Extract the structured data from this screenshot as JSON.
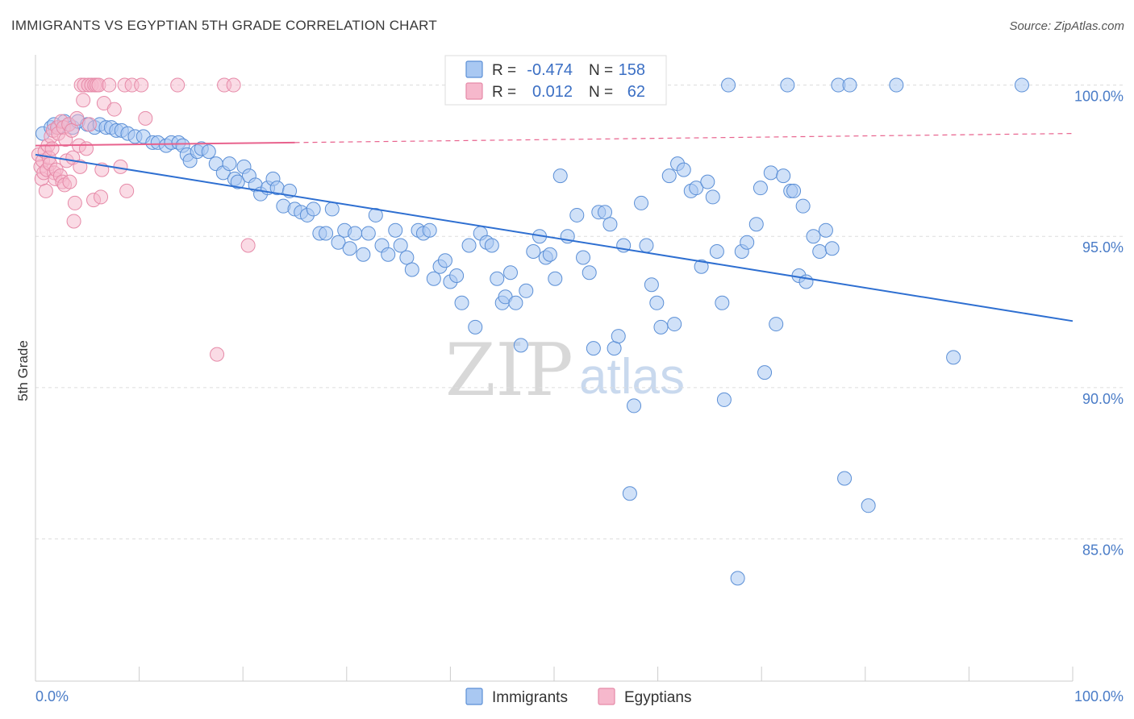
{
  "title": "IMMIGRANTS VS EGYPTIAN 5TH GRADE CORRELATION CHART",
  "source": "Source: ZipAtlas.com",
  "watermark": {
    "zip": "ZIP",
    "atlas": "atlas"
  },
  "colors": {
    "immigrants_fill": "#a9c8f2",
    "immigrants_stroke": "#5b8fd6",
    "immigrants_line": "#2e6fd1",
    "egyptians_fill": "#f6b8cc",
    "egyptians_stroke": "#e68aa8",
    "egyptians_line": "#e8628d",
    "tick_label": "#4a7cc7",
    "grid": "#dddddd"
  },
  "legend": {
    "rows": [
      {
        "r_label": "R =",
        "r_value": "-0.474",
        "n_label": "N =",
        "n_value": "158"
      },
      {
        "r_label": "R =",
        "r_value": "0.012",
        "n_label": "N =",
        "n_value": "62"
      }
    ]
  },
  "bottom_legend": {
    "immigrants": "Immigrants",
    "egyptians": "Egyptians"
  },
  "chart_data": {
    "type": "scatter",
    "title": "IMMIGRANTS VS EGYPTIAN 5TH GRADE CORRELATION CHART",
    "xlabel": "",
    "ylabel": "5th Grade",
    "xlim": [
      0,
      100
    ],
    "ylim": [
      80.3,
      101.0
    ],
    "x_tick_labels": [
      "0.0%",
      "100.0%"
    ],
    "y_ticks": [
      85,
      90,
      95,
      100
    ],
    "y_tick_labels": [
      "85.0%",
      "90.0%",
      "95.0%",
      "100.0%"
    ],
    "grid": true,
    "legend_position": "top-center",
    "series": [
      {
        "name": "Immigrants",
        "r": -0.474,
        "n": 158,
        "trend": {
          "x": [
            0,
            100
          ],
          "y": [
            97.7,
            92.2
          ],
          "style": "solid"
        },
        "points": [
          [
            0.7,
            98.4
          ],
          [
            1.5,
            98.6
          ],
          [
            1.8,
            98.7
          ],
          [
            2.2,
            98.6
          ],
          [
            2.8,
            98.8
          ],
          [
            3.2,
            98.7
          ],
          [
            3.6,
            98.6
          ],
          [
            4.1,
            98.8
          ],
          [
            5.0,
            98.7
          ],
          [
            5.7,
            98.6
          ],
          [
            6.2,
            98.7
          ],
          [
            6.8,
            98.6
          ],
          [
            7.3,
            98.6
          ],
          [
            7.8,
            98.5
          ],
          [
            8.3,
            98.5
          ],
          [
            8.9,
            98.4
          ],
          [
            9.6,
            98.3
          ],
          [
            10.4,
            98.3
          ],
          [
            11.3,
            98.1
          ],
          [
            11.8,
            98.1
          ],
          [
            12.6,
            98.0
          ],
          [
            13.1,
            98.1
          ],
          [
            13.8,
            98.1
          ],
          [
            14.2,
            98.0
          ],
          [
            14.6,
            97.7
          ],
          [
            14.9,
            97.5
          ],
          [
            15.6,
            97.8
          ],
          [
            16.0,
            97.9
          ],
          [
            16.7,
            97.8
          ],
          [
            17.4,
            97.4
          ],
          [
            18.1,
            97.1
          ],
          [
            18.7,
            97.4
          ],
          [
            19.2,
            96.9
          ],
          [
            19.5,
            96.8
          ],
          [
            20.1,
            97.3
          ],
          [
            20.6,
            97.0
          ],
          [
            21.2,
            96.7
          ],
          [
            21.7,
            96.4
          ],
          [
            22.4,
            96.6
          ],
          [
            22.9,
            96.9
          ],
          [
            23.3,
            96.6
          ],
          [
            23.9,
            96.0
          ],
          [
            24.5,
            96.5
          ],
          [
            25.0,
            95.9
          ],
          [
            25.6,
            95.8
          ],
          [
            26.2,
            95.7
          ],
          [
            26.8,
            95.9
          ],
          [
            27.4,
            95.1
          ],
          [
            28.0,
            95.1
          ],
          [
            28.6,
            95.9
          ],
          [
            29.2,
            94.8
          ],
          [
            29.8,
            95.2
          ],
          [
            30.3,
            94.6
          ],
          [
            30.8,
            95.1
          ],
          [
            31.6,
            94.4
          ],
          [
            32.1,
            95.1
          ],
          [
            32.8,
            95.7
          ],
          [
            33.4,
            94.7
          ],
          [
            34.0,
            94.4
          ],
          [
            34.7,
            95.2
          ],
          [
            35.2,
            94.7
          ],
          [
            35.8,
            94.3
          ],
          [
            36.3,
            93.9
          ],
          [
            36.9,
            95.2
          ],
          [
            37.4,
            95.1
          ],
          [
            38.0,
            95.2
          ],
          [
            38.4,
            93.6
          ],
          [
            39.0,
            94.0
          ],
          [
            39.5,
            94.2
          ],
          [
            40.0,
            93.5
          ],
          [
            40.6,
            93.7
          ],
          [
            41.1,
            92.8
          ],
          [
            41.8,
            94.7
          ],
          [
            42.4,
            92.0
          ],
          [
            42.9,
            95.1
          ],
          [
            43.5,
            94.8
          ],
          [
            44.0,
            94.7
          ],
          [
            44.5,
            93.6
          ],
          [
            45.0,
            92.8
          ],
          [
            45.3,
            93.0
          ],
          [
            45.8,
            93.8
          ],
          [
            46.3,
            92.8
          ],
          [
            46.8,
            91.4
          ],
          [
            47.3,
            93.2
          ],
          [
            48.0,
            94.5
          ],
          [
            48.6,
            95.0
          ],
          [
            49.2,
            94.3
          ],
          [
            49.6,
            94.4
          ],
          [
            50.1,
            93.6
          ],
          [
            50.6,
            97.0
          ],
          [
            51.3,
            95.0
          ],
          [
            52.2,
            95.7
          ],
          [
            52.8,
            94.3
          ],
          [
            53.4,
            93.8
          ],
          [
            53.8,
            91.3
          ],
          [
            54.3,
            95.8
          ],
          [
            54.9,
            95.8
          ],
          [
            55.4,
            95.4
          ],
          [
            55.8,
            91.3
          ],
          [
            56.2,
            91.7
          ],
          [
            56.7,
            94.7
          ],
          [
            57.3,
            86.5
          ],
          [
            57.7,
            89.4
          ],
          [
            58.4,
            96.1
          ],
          [
            58.9,
            94.7
          ],
          [
            59.4,
            93.4
          ],
          [
            59.9,
            92.8
          ],
          [
            60.3,
            92.0
          ],
          [
            61.1,
            97.0
          ],
          [
            61.6,
            92.1
          ],
          [
            61.9,
            97.4
          ],
          [
            62.5,
            97.2
          ],
          [
            63.2,
            96.5
          ],
          [
            63.7,
            96.6
          ],
          [
            64.2,
            94.0
          ],
          [
            64.8,
            96.8
          ],
          [
            65.3,
            96.3
          ],
          [
            65.7,
            94.5
          ],
          [
            66.2,
            92.8
          ],
          [
            66.4,
            89.6
          ],
          [
            66.8,
            100.0
          ],
          [
            67.7,
            83.7
          ],
          [
            68.1,
            94.5
          ],
          [
            68.6,
            94.8
          ],
          [
            69.5,
            95.4
          ],
          [
            69.9,
            96.6
          ],
          [
            70.3,
            90.5
          ],
          [
            70.9,
            97.1
          ],
          [
            71.4,
            92.1
          ],
          [
            72.1,
            97.0
          ],
          [
            72.5,
            100.0
          ],
          [
            72.8,
            96.5
          ],
          [
            73.1,
            96.5
          ],
          [
            73.6,
            93.7
          ],
          [
            74.0,
            96.0
          ],
          [
            74.3,
            93.5
          ],
          [
            75.0,
            95.0
          ],
          [
            75.6,
            94.5
          ],
          [
            76.2,
            95.2
          ],
          [
            76.8,
            94.6
          ],
          [
            77.4,
            100.0
          ],
          [
            78.0,
            87.0
          ],
          [
            78.5,
            100.0
          ],
          [
            80.3,
            86.1
          ],
          [
            83.0,
            100.0
          ],
          [
            88.5,
            91.0
          ],
          [
            95.1,
            100.0
          ]
        ]
      },
      {
        "name": "Egyptians",
        "r": 0.012,
        "n": 62,
        "trend": {
          "x": [
            0,
            25,
            100
          ],
          "y": [
            98.0,
            98.1,
            98.4
          ],
          "style": "solid-then-dashed"
        },
        "points": [
          [
            0.3,
            97.7
          ],
          [
            0.5,
            97.3
          ],
          [
            0.6,
            96.9
          ],
          [
            0.7,
            97.5
          ],
          [
            0.8,
            97.1
          ],
          [
            0.9,
            97.8
          ],
          [
            1.0,
            96.5
          ],
          [
            1.1,
            97.2
          ],
          [
            1.2,
            98.0
          ],
          [
            1.3,
            97.6
          ],
          [
            1.4,
            97.4
          ],
          [
            1.5,
            98.3
          ],
          [
            1.6,
            97.9
          ],
          [
            1.7,
            98.5
          ],
          [
            1.8,
            97.1
          ],
          [
            1.9,
            96.9
          ],
          [
            2.0,
            97.2
          ],
          [
            2.1,
            98.6
          ],
          [
            2.2,
            98.4
          ],
          [
            2.4,
            97.0
          ],
          [
            2.5,
            98.8
          ],
          [
            2.6,
            96.8
          ],
          [
            2.7,
            98.6
          ],
          [
            2.8,
            96.7
          ],
          [
            2.9,
            98.2
          ],
          [
            3.0,
            97.5
          ],
          [
            3.2,
            98.7
          ],
          [
            3.3,
            96.8
          ],
          [
            3.5,
            98.5
          ],
          [
            3.6,
            97.6
          ],
          [
            3.7,
            95.5
          ],
          [
            3.8,
            96.1
          ],
          [
            4.0,
            98.9
          ],
          [
            4.2,
            98.0
          ],
          [
            4.3,
            97.3
          ],
          [
            4.4,
            100.0
          ],
          [
            4.6,
            99.5
          ],
          [
            4.7,
            100.0
          ],
          [
            4.9,
            97.9
          ],
          [
            5.1,
            100.0
          ],
          [
            5.2,
            98.7
          ],
          [
            5.4,
            100.0
          ],
          [
            5.6,
            96.2
          ],
          [
            5.7,
            100.0
          ],
          [
            5.9,
            100.0
          ],
          [
            6.1,
            100.0
          ],
          [
            6.3,
            96.3
          ],
          [
            6.4,
            97.2
          ],
          [
            6.6,
            99.4
          ],
          [
            7.1,
            100.0
          ],
          [
            7.6,
            99.2
          ],
          [
            8.2,
            97.3
          ],
          [
            8.6,
            100.0
          ],
          [
            8.8,
            96.5
          ],
          [
            9.3,
            100.0
          ],
          [
            10.2,
            100.0
          ],
          [
            10.6,
            98.9
          ],
          [
            13.7,
            100.0
          ],
          [
            17.5,
            91.1
          ],
          [
            18.2,
            100.0
          ],
          [
            19.1,
            100.0
          ],
          [
            20.5,
            94.7
          ]
        ]
      }
    ]
  }
}
